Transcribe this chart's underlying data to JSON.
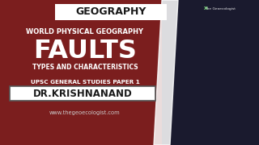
{
  "bg_color": "#7b1e1e",
  "title_box_color": "#ffffff",
  "title_text": "GEOGRAPHY",
  "title_text_color": "#1a1a1a",
  "line1": "WORLD PHYSICAL GEOGRAPHY",
  "line1_color": "#ffffff",
  "main_title": "FAULTS",
  "main_title_color": "#ffffff",
  "line2": "TYPES AND CHARACTERISTICS",
  "line2_color": "#ffffff",
  "line3": "UPSC GENERAL STUDIES PAPER 1",
  "line3_color": "#ffffff",
  "name_box_color": "#ffffff",
  "name_text": "DR.KRISHNANAND",
  "name_text_color": "#1a1a1a",
  "website": "www.thegeoecologist.com",
  "website_color": "#cccccc",
  "logo_text": "The Geoecologist",
  "logo_color": "#ffffff",
  "navy_color": "#1a1a2e",
  "white_stripe_color": "#ffffff",
  "figsize": [
    3.2,
    1.8
  ],
  "dpi": 100
}
